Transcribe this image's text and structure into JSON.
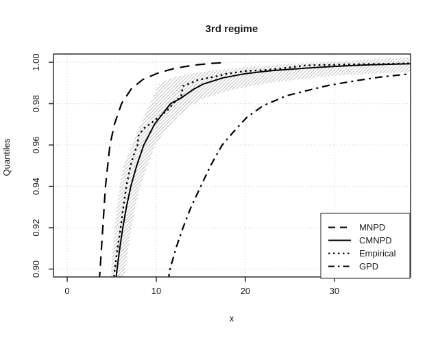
{
  "title": "3rd regime",
  "colors": {
    "line": "#000000",
    "grid": "#c9c9c9",
    "band_hatch": "#c4c4c4",
    "axis": "#2f2f2f",
    "background": "#ffffff",
    "legend_border": "#444444"
  },
  "legend": {
    "position": "bottom-right",
    "items": [
      {
        "label": "MNPD",
        "style": "longdash"
      },
      {
        "label": "CMNPD",
        "style": "solid"
      },
      {
        "label": "Empirical",
        "style": "dotted"
      },
      {
        "label": "GPD",
        "style": "dashdot"
      }
    ]
  },
  "chart_data": {
    "type": "line",
    "title": "3rd regime",
    "xlabel": "x",
    "ylabel": "Quantiles",
    "xlim": [
      -1.54,
      38.55
    ],
    "ylim": [
      0.8962,
      1.004
    ],
    "x_ticks": [
      0,
      10,
      20,
      30
    ],
    "x_tick_labels": [
      "0",
      "10",
      "20",
      "30"
    ],
    "y_ticks": [
      0.9,
      0.92,
      0.94,
      0.96,
      0.98,
      1.0
    ],
    "y_tick_labels": [
      "0.90",
      "0.92",
      "0.94",
      "0.96",
      "0.98",
      "1.00"
    ],
    "grid": true,
    "grid_style": "dotted",
    "legend_position": "bottom-right",
    "series": [
      {
        "name": "MNPD",
        "style": "longdash",
        "points": [
          [
            3.6,
            0.894
          ],
          [
            3.7,
            0.9
          ],
          [
            3.85,
            0.91
          ],
          [
            4.0,
            0.92
          ],
          [
            4.15,
            0.93
          ],
          [
            4.3,
            0.94
          ],
          [
            4.55,
            0.95
          ],
          [
            4.8,
            0.96
          ],
          [
            5.3,
            0.97
          ],
          [
            6.1,
            0.98
          ],
          [
            7.2,
            0.9872
          ],
          [
            8.5,
            0.9917
          ],
          [
            10.2,
            0.9948
          ],
          [
            12.0,
            0.997
          ],
          [
            14.0,
            0.9985
          ],
          [
            16.0,
            0.9994
          ],
          [
            17.9,
            0.9999
          ]
        ]
      },
      {
        "name": "CMNPD",
        "style": "solid",
        "points": [
          [
            5.45,
            0.894
          ],
          [
            5.6,
            0.9
          ],
          [
            5.9,
            0.91
          ],
          [
            6.25,
            0.92
          ],
          [
            6.65,
            0.93
          ],
          [
            7.15,
            0.94
          ],
          [
            7.8,
            0.95
          ],
          [
            8.6,
            0.96
          ],
          [
            9.8,
            0.97
          ],
          [
            11.6,
            0.98
          ],
          [
            12.7,
            0.9825
          ],
          [
            14.2,
            0.987
          ],
          [
            15.3,
            0.9895
          ],
          [
            17.5,
            0.9925
          ],
          [
            20.0,
            0.9945
          ],
          [
            23.0,
            0.996
          ],
          [
            26.8,
            0.9972
          ],
          [
            30.0,
            0.998
          ],
          [
            34.0,
            0.9988
          ],
          [
            38.5,
            0.9993
          ]
        ]
      },
      {
        "name": "Empirical",
        "style": "dotted",
        "points": [
          [
            5.2,
            0.894
          ],
          [
            5.35,
            0.9
          ],
          [
            5.65,
            0.91
          ],
          [
            6.0,
            0.92
          ],
          [
            6.3,
            0.93
          ],
          [
            6.65,
            0.94
          ],
          [
            7.1,
            0.95
          ],
          [
            7.6,
            0.957
          ],
          [
            7.9,
            0.96
          ],
          [
            8.0,
            0.9645
          ],
          [
            8.6,
            0.968
          ],
          [
            9.4,
            0.9705
          ],
          [
            10.4,
            0.9738
          ],
          [
            11.2,
            0.9765
          ],
          [
            11.9,
            0.98
          ],
          [
            12.5,
            0.9825
          ],
          [
            12.8,
            0.984
          ],
          [
            13.0,
            0.9885
          ],
          [
            13.6,
            0.9895
          ],
          [
            14.5,
            0.9912
          ],
          [
            15.3,
            0.992
          ],
          [
            16.5,
            0.993
          ],
          [
            18.0,
            0.9945
          ],
          [
            20.1,
            0.9958
          ],
          [
            22.0,
            0.9962
          ],
          [
            24.0,
            0.997
          ],
          [
            26.8,
            0.9985
          ],
          [
            29.0,
            0.9987
          ],
          [
            32.0,
            0.999
          ],
          [
            35.0,
            0.9992
          ],
          [
            38.5,
            0.9995
          ]
        ]
      },
      {
        "name": "GPD",
        "style": "dashdot",
        "points": [
          [
            11.3,
            0.894
          ],
          [
            11.55,
            0.9
          ],
          [
            12.2,
            0.91
          ],
          [
            13.0,
            0.92
          ],
          [
            13.9,
            0.93
          ],
          [
            15.0,
            0.94
          ],
          [
            16.1,
            0.95
          ],
          [
            17.4,
            0.96
          ],
          [
            18.9,
            0.9675
          ],
          [
            20.2,
            0.9735
          ],
          [
            22.0,
            0.979
          ],
          [
            24.6,
            0.9838
          ],
          [
            26.8,
            0.9862
          ],
          [
            29.3,
            0.9888
          ],
          [
            32.0,
            0.9908
          ],
          [
            35.0,
            0.9928
          ],
          [
            38.5,
            0.9944
          ]
        ]
      }
    ],
    "confidence_band": {
      "name": "CMNPD confidence band",
      "hatch": true,
      "upper": [
        [
          4.85,
          0.894
        ],
        [
          5.05,
          0.905
        ],
        [
          5.35,
          0.92
        ],
        [
          5.75,
          0.935
        ],
        [
          6.3,
          0.95
        ],
        [
          7.3,
          0.96
        ],
        [
          8.0,
          0.968
        ],
        [
          8.9,
          0.976
        ],
        [
          9.7,
          0.9835
        ],
        [
          10.3,
          0.9895
        ],
        [
          11.5,
          0.992
        ],
        [
          13.0,
          0.9938
        ],
        [
          15.0,
          0.9952
        ],
        [
          17.5,
          0.9966
        ],
        [
          20.0,
          0.9976
        ],
        [
          23.0,
          0.9986
        ],
        [
          26.8,
          0.9996
        ],
        [
          30.0,
          1.0004
        ],
        [
          34.0,
          1.0014
        ],
        [
          38.5,
          1.0024
        ]
      ],
      "lower": [
        [
          6.35,
          0.894
        ],
        [
          6.5,
          0.9
        ],
        [
          6.85,
          0.91
        ],
        [
          7.2,
          0.92
        ],
        [
          7.65,
          0.93
        ],
        [
          8.2,
          0.94
        ],
        [
          9.0,
          0.95
        ],
        [
          9.9,
          0.96
        ],
        [
          11.2,
          0.968
        ],
        [
          12.5,
          0.974
        ],
        [
          13.9,
          0.979
        ],
        [
          15.3,
          0.9825
        ],
        [
          17.5,
          0.9855
        ],
        [
          20.0,
          0.988
        ],
        [
          23.0,
          0.9902
        ],
        [
          26.8,
          0.9922
        ],
        [
          30.0,
          0.9935
        ],
        [
          34.0,
          0.9945
        ],
        [
          38.5,
          0.9952
        ]
      ]
    }
  }
}
